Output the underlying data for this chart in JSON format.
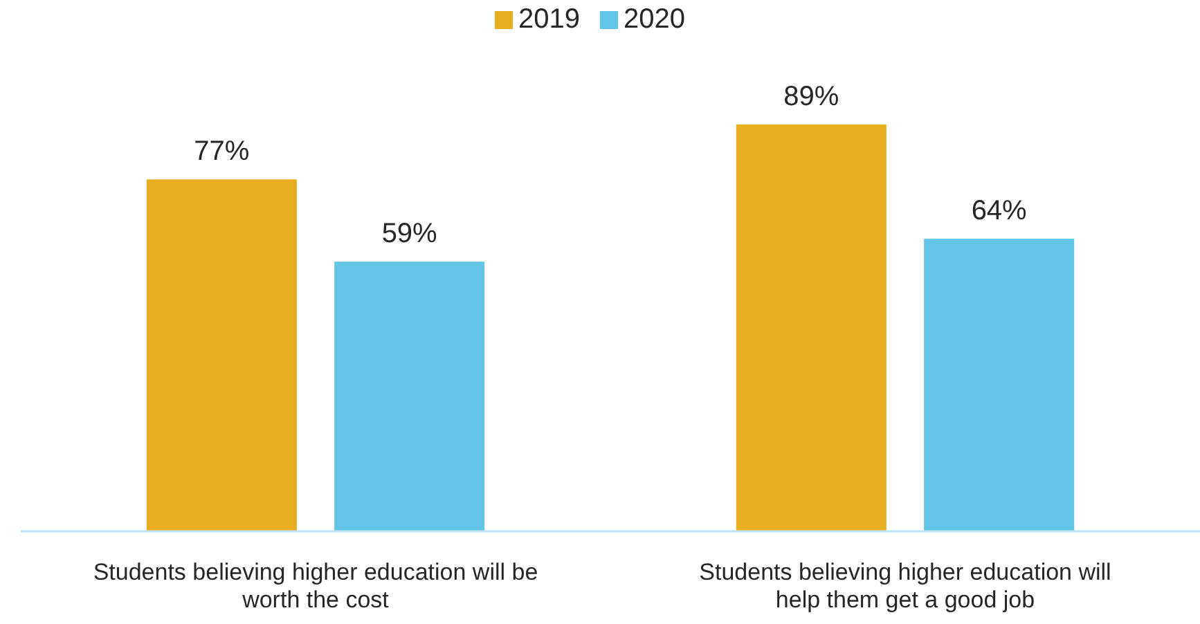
{
  "chart_data": {
    "type": "bar",
    "categories": [
      "Students believing higher education will be worth the cost",
      "Students believing higher education will help them get a good job"
    ],
    "series": [
      {
        "name": "2019",
        "color": "#e9ad22",
        "values": [
          77,
          89
        ],
        "value_labels": [
          "77%",
          "89%"
        ]
      },
      {
        "name": "2020",
        "color": "#62c5e6",
        "values": [
          59,
          64
        ],
        "value_labels": [
          "59%",
          "64%"
        ]
      }
    ],
    "legend": "top"
  }
}
